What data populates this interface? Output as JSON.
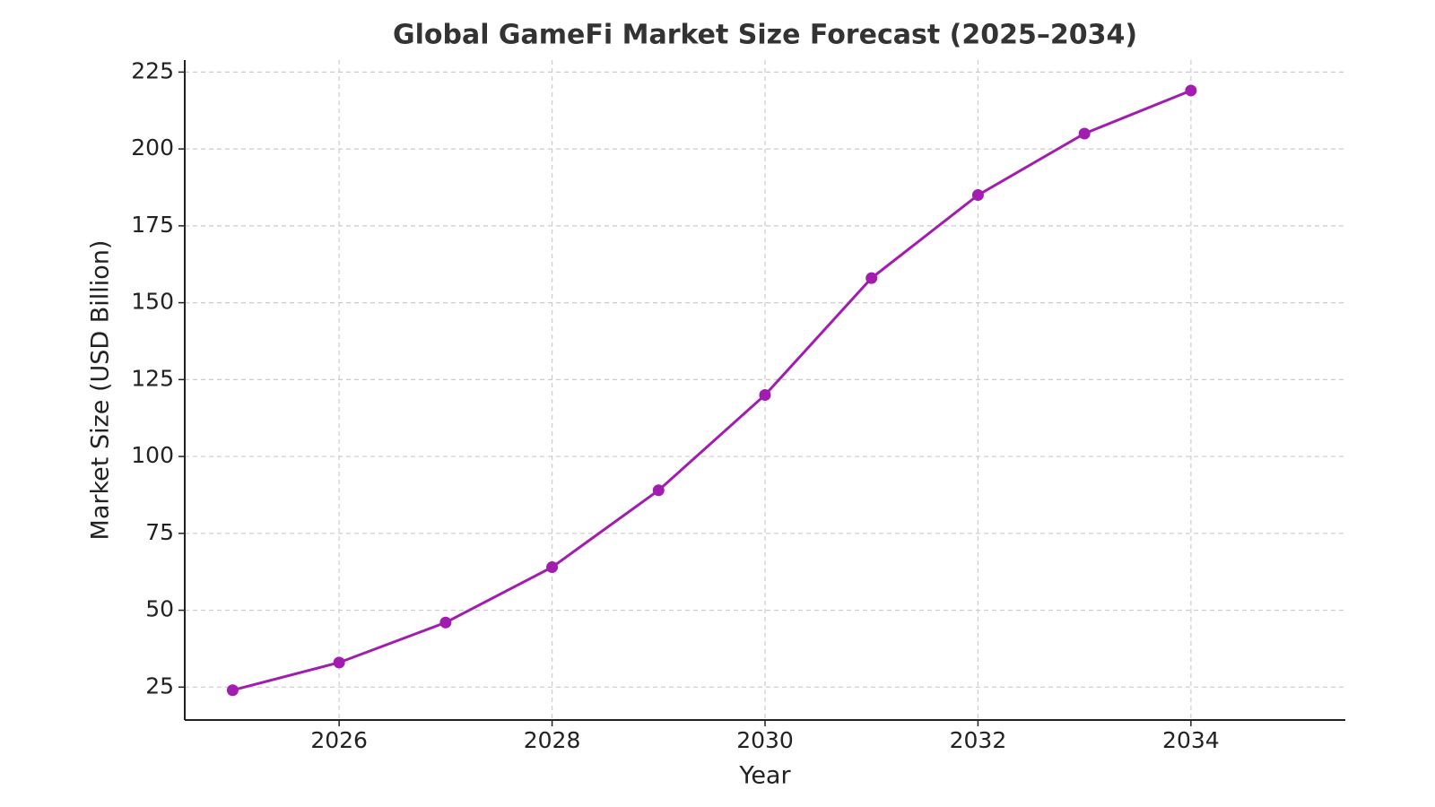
{
  "chart_data": {
    "type": "line",
    "title": "Global GameFi Market Size Forecast (2025–2034)",
    "x_label": "Year",
    "y_label": "Market Size (USD Billion)",
    "x": [
      2025,
      2026,
      2027,
      2028,
      2029,
      2030,
      2031,
      2032,
      2033,
      2034
    ],
    "series": [
      {
        "name": "Market Size",
        "color": "#a21caf",
        "values": [
          24,
          33,
          46,
          64,
          89,
          120,
          158,
          185,
          205,
          219
        ]
      }
    ],
    "xlim": [
      2024.55,
      2035.45
    ],
    "xticks": [
      2026,
      2028,
      2030,
      2032,
      2034
    ],
    "ylim": [
      14.3,
      228.9
    ],
    "yticks": [
      25,
      50,
      75,
      100,
      125,
      150,
      175,
      200,
      225
    ],
    "grid": true
  }
}
